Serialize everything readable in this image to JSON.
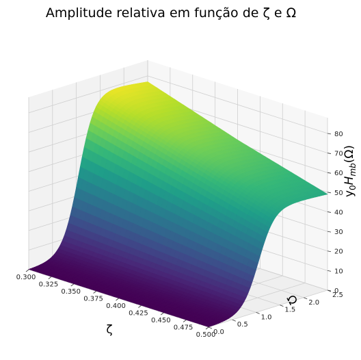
{
  "chart_data": {
    "type": "surface",
    "title": "Amplitude relativa em função de ζ e Ω",
    "xlabel": "ζ",
    "ylabel": "Ω",
    "zlabel": "y₀H_mb(Ω)",
    "xlim": [
      0.3,
      0.5
    ],
    "ylim": [
      0.0,
      2.5
    ],
    "zlim": [
      0,
      88
    ],
    "x_ticks": [
      "0.300",
      "0.325",
      "0.350",
      "0.375",
      "0.400",
      "0.425",
      "0.450",
      "0.475",
      "0.500"
    ],
    "y_ticks": [
      "0.0",
      "0.5",
      "1.0",
      "1.5",
      "2.0",
      "2.5"
    ],
    "z_ticks": [
      "0",
      "10",
      "20",
      "30",
      "40",
      "50",
      "60",
      "70",
      "80"
    ],
    "colormap": "viridis",
    "grid": true,
    "surface_samples": {
      "zeta": [
        0.3,
        0.4,
        0.5
      ],
      "omega": [
        0.0,
        0.5,
        1.0,
        1.5,
        2.0,
        2.5
      ],
      "z_at_zeta_0.3": [
        0,
        1,
        36,
        81,
        79,
        77
      ],
      "z_at_zeta_0.4": [
        0,
        1,
        28,
        66,
        64,
        62
      ],
      "z_at_zeta_0.5": [
        0,
        1,
        19,
        51,
        50,
        49
      ]
    }
  }
}
